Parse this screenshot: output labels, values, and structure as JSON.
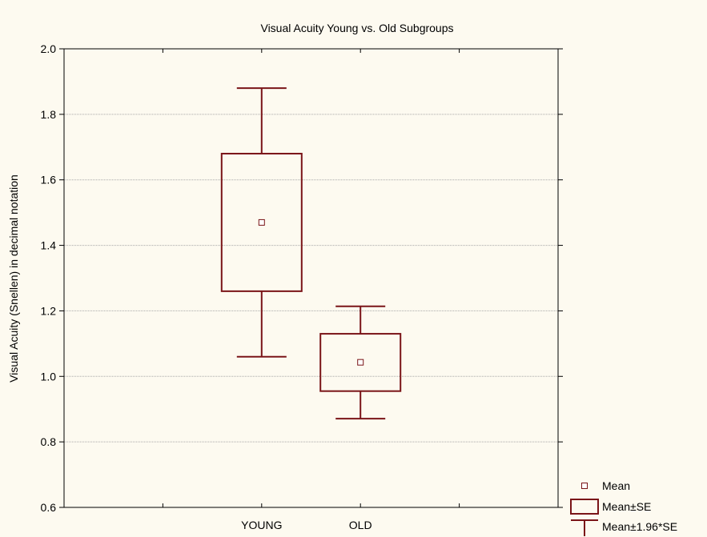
{
  "chart_data": {
    "type": "box",
    "title": "Visual Acuity  Young vs. Old Subgroups",
    "xlabel": "",
    "ylabel": "Visual Acuity (Snellen) in decimal notation",
    "ylim": [
      0.6,
      2.0
    ],
    "yticks": [
      0.6,
      0.8,
      1.0,
      1.2,
      1.4,
      1.6,
      1.8,
      2.0
    ],
    "ytick_labels": [
      "0.6",
      "0.8",
      "1.0",
      "1.2",
      "1.4",
      "1.6",
      "1.8",
      "2.0"
    ],
    "categories": [
      "YOUNG",
      "OLD"
    ],
    "groups": [
      {
        "label": "YOUNG",
        "mean": 1.47,
        "se_low": 1.26,
        "se_high": 1.68,
        "ci_low": 1.06,
        "ci_high": 1.88
      },
      {
        "label": "OLD",
        "mean": 1.043,
        "se_low": 0.955,
        "se_high": 1.13,
        "ci_low": 0.871,
        "ci_high": 1.214
      }
    ],
    "grid": true,
    "legend": {
      "position": "bottom-right",
      "entries": [
        {
          "label": "Mean",
          "symbol": "square-marker"
        },
        {
          "label": "Mean±SE",
          "symbol": "box"
        },
        {
          "label": "Mean±1.96*SE",
          "symbol": "whisker"
        }
      ]
    },
    "colors": {
      "series": "#7a1418",
      "grid": "#a8a8a8",
      "axis": "#000000",
      "background": "#fdfaf0"
    }
  }
}
